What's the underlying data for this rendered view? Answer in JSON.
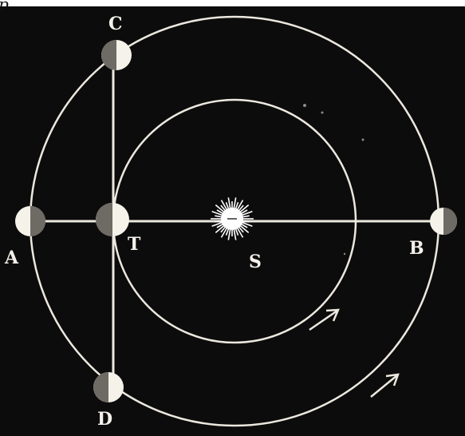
{
  "diagram": {
    "colors": {
      "background": "#0c0c0c",
      "line": "#ece8df",
      "dark_side": "#6e6a64",
      "lit_side": "#f5f2ea",
      "sun": "#ffffff"
    },
    "labels": {
      "top": "C",
      "left": "A",
      "center_planet": "T",
      "sun": "S",
      "right": "B",
      "bottom": "D",
      "corner": "p"
    },
    "bodies": [
      {
        "id": "C",
        "shaded_side": "left"
      },
      {
        "id": "A",
        "shaded_side": "right"
      },
      {
        "id": "T",
        "shaded_side": "left"
      },
      {
        "id": "B",
        "shaded_side": "right"
      },
      {
        "id": "D",
        "shaded_side": "left"
      }
    ],
    "arrows": [
      "orbit-arrow-inner",
      "orbit-arrow-outer"
    ]
  }
}
